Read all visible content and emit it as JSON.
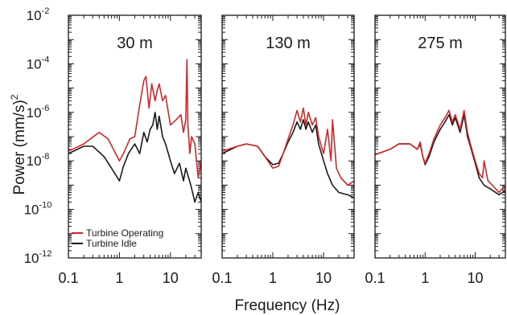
{
  "chart_data": [
    {
      "type": "line",
      "title": "30 m",
      "xscale": "log",
      "yscale": "log",
      "xlim": [
        0.1,
        40
      ],
      "ylim": [
        1e-12,
        0.01
      ],
      "x_ticks": [
        "0.1",
        "1",
        "10"
      ],
      "series": [
        {
          "name": "Turbine Operating",
          "color": "#d62728",
          "x": [
            0.1,
            0.2,
            0.4,
            0.6,
            0.8,
            1.0,
            1.2,
            1.6,
            2.0,
            2.5,
            3.0,
            3.3,
            3.8,
            4.3,
            5.0,
            5.5,
            6.0,
            7.0,
            8.0,
            10.0,
            13.0,
            16.0,
            18.0,
            20.0,
            21.0,
            22.0,
            24.0,
            26.0,
            30.0,
            35.0,
            40.0
          ],
          "y": [
            2.5e-08,
            5e-08,
            1.5e-07,
            8e-08,
            2.5e-08,
            1e-08,
            2e-08,
            8e-08,
            1e-07,
            2e-06,
            2e-05,
            3e-05,
            1.5e-06,
            1.5e-05,
            3e-06,
            8e-06,
            1.5e-05,
            3e-06,
            5e-06,
            3e-07,
            5e-07,
            8e-07,
            1.5e-07,
            5e-07,
            0.00015,
            3e-07,
            2e-08,
            1e-07,
            5e-08,
            2e-09,
            1e-08
          ]
        },
        {
          "name": "Turbine Idle",
          "color": "#1a1a1a",
          "x": [
            0.1,
            0.2,
            0.3,
            0.5,
            0.7,
            1.0,
            1.2,
            1.5,
            2.0,
            2.5,
            3.0,
            3.5,
            4.0,
            4.5,
            5.0,
            5.5,
            6.0,
            7.0,
            8.0,
            10.0,
            12.0,
            15.0,
            18.0,
            20.0,
            25.0,
            30.0,
            35.0,
            40.0
          ],
          "y": [
            2e-08,
            4e-08,
            4e-08,
            1.5e-08,
            5e-09,
            1.5e-09,
            6e-09,
            2e-08,
            5e-08,
            2e-08,
            1.5e-07,
            6e-08,
            2e-07,
            3e-07,
            1e-06,
            2e-07,
            7e-07,
            1e-07,
            5e-08,
            1e-08,
            3e-09,
            8e-09,
            1.5e-09,
            5e-09,
            1e-09,
            2e-10,
            5e-10,
            2e-10
          ]
        }
      ]
    },
    {
      "type": "line",
      "title": "130 m",
      "xscale": "log",
      "yscale": "log",
      "xlim": [
        0.1,
        40
      ],
      "ylim": [
        1e-12,
        0.01
      ],
      "x_ticks": [
        "0.1",
        "1",
        "10"
      ],
      "series": [
        {
          "name": "Turbine Operating",
          "color": "#d62728",
          "x": [
            0.1,
            0.2,
            0.3,
            0.5,
            0.7,
            1.0,
            1.3,
            1.6,
            2.0,
            2.5,
            3.0,
            3.5,
            4.0,
            4.5,
            5.0,
            6.0,
            7.0,
            8.0,
            10.0,
            12.0,
            14.0,
            15.0,
            18.0,
            22.0,
            30.0,
            40.0
          ],
          "y": [
            2.5e-08,
            4e-08,
            5e-08,
            4e-08,
            1.5e-08,
            5e-09,
            6e-09,
            2e-08,
            8e-08,
            3e-07,
            1.2e-06,
            4e-07,
            1.5e-06,
            3e-07,
            1e-06,
            3e-07,
            6e-07,
            1e-07,
            2e-08,
            2e-07,
            1e-08,
            5e-07,
            5e-09,
            2e-09,
            1e-09,
            1.5e-09
          ]
        },
        {
          "name": "Turbine Idle",
          "color": "#1a1a1a",
          "x": [
            0.1,
            0.2,
            0.3,
            0.5,
            0.7,
            1.0,
            1.3,
            1.6,
            2.0,
            2.5,
            3.0,
            3.5,
            4.0,
            4.5,
            5.0,
            6.0,
            7.0,
            8.0,
            10.0,
            12.0,
            15.0,
            20.0,
            30.0,
            40.0
          ],
          "y": [
            2e-08,
            4e-08,
            5e-08,
            4e-08,
            1.5e-08,
            7e-09,
            8e-09,
            2e-08,
            6e-08,
            1.5e-07,
            4e-07,
            2e-07,
            5e-07,
            2e-07,
            4e-07,
            1.5e-07,
            3e-07,
            5e-08,
            1e-08,
            3e-09,
            1e-09,
            5e-10,
            4e-10,
            3e-10
          ]
        }
      ]
    },
    {
      "type": "line",
      "title": "275 m",
      "xscale": "log",
      "yscale": "log",
      "xlim": [
        0.1,
        40
      ],
      "ylim": [
        1e-12,
        0.01
      ],
      "x_ticks": [
        "0.1",
        "1",
        "10"
      ],
      "series": [
        {
          "name": "Turbine Operating",
          "color": "#d62728",
          "x": [
            0.1,
            0.2,
            0.3,
            0.5,
            0.7,
            0.8,
            0.9,
            1.0,
            1.2,
            1.5,
            2.0,
            2.5,
            3.0,
            3.5,
            4.0,
            5.0,
            6.0,
            7.0,
            8.0,
            10.0,
            12.0,
            14.0,
            15.0,
            18.0,
            22.0,
            30.0,
            40.0
          ],
          "y": [
            1.8e-08,
            3e-08,
            5e-08,
            5e-08,
            3e-08,
            6e-08,
            1.5e-08,
            8e-09,
            2e-08,
            8e-08,
            3e-07,
            6e-07,
            1.2e-06,
            4e-07,
            8e-07,
            2e-07,
            1.2e-06,
            1.5e-07,
            5e-08,
            1e-08,
            3e-09,
            2e-09,
            1e-08,
            1.5e-09,
            1e-09,
            5e-10,
            1e-09
          ]
        },
        {
          "name": "Turbine Idle",
          "color": "#1a1a1a",
          "x": [
            0.1,
            0.2,
            0.3,
            0.5,
            0.7,
            0.8,
            0.9,
            1.0,
            1.2,
            1.5,
            2.0,
            2.5,
            3.0,
            3.5,
            4.0,
            5.0,
            6.0,
            7.0,
            8.0,
            10.0,
            12.0,
            15.0,
            20.0,
            30.0,
            40.0
          ],
          "y": [
            1.8e-08,
            3e-08,
            5e-08,
            5e-08,
            3e-08,
            5e-08,
            1.5e-08,
            7e-09,
            1.5e-08,
            6e-08,
            2e-07,
            4e-07,
            8e-07,
            3e-07,
            6e-07,
            1.5e-07,
            8e-07,
            1e-07,
            4e-08,
            8e-09,
            2e-09,
            1e-09,
            7e-10,
            4e-10,
            6e-10
          ]
        }
      ]
    }
  ],
  "axes": {
    "xlabel": "Frequency (Hz)",
    "ylabel_main": "Power (mm/s)",
    "ylabel_sup": "2",
    "y_ticks": [
      {
        "base": "10",
        "exp": "-2"
      },
      {
        "base": "10",
        "exp": "-4"
      },
      {
        "base": "10",
        "exp": "-6"
      },
      {
        "base": "10",
        "exp": "-8"
      },
      {
        "base": "10",
        "exp": "-10"
      },
      {
        "base": "10",
        "exp": "-12"
      }
    ]
  },
  "legend": {
    "placement": "bottom-left of first panel",
    "items": [
      {
        "label": "Turbine Operating",
        "color": "#d62728"
      },
      {
        "label": "Turbine Idle",
        "color": "#1a1a1a"
      }
    ]
  }
}
